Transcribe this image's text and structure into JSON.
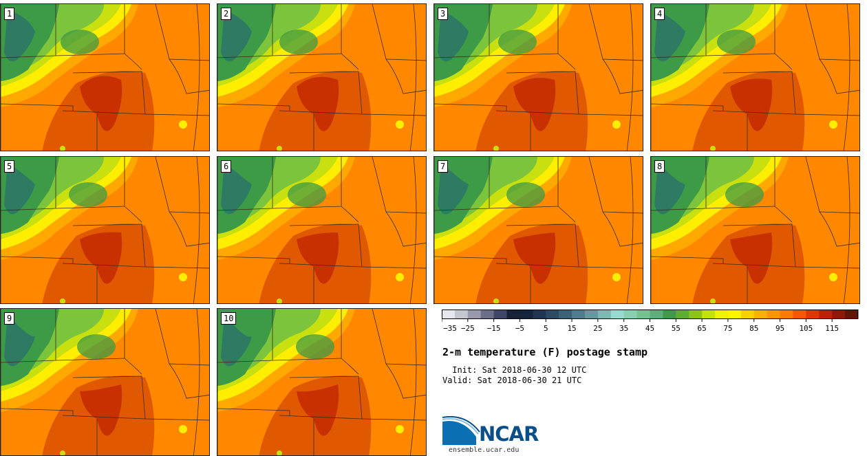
{
  "figure": {
    "title": "2-m temperature (F) postage stamp",
    "init": " Init: Sat 2018-06-30 12 UTC",
    "valid": "Valid: Sat 2018-06-30 21 UTC",
    "logo_text": "NCAR",
    "logo_url": "ensemble.ucar.edu"
  },
  "members": [
    {
      "label": "1"
    },
    {
      "label": "2"
    },
    {
      "label": "3"
    },
    {
      "label": "4"
    },
    {
      "label": "5"
    },
    {
      "label": "6"
    },
    {
      "label": "7"
    },
    {
      "label": "8"
    },
    {
      "label": "9"
    },
    {
      "label": "10"
    }
  ],
  "colorbar": {
    "tick_labels": [
      "−35",
      "−25",
      "−15",
      "−5",
      "5",
      "15",
      "25",
      "35",
      "45",
      "55",
      "65",
      "75",
      "85",
      "95",
      "105",
      "115"
    ],
    "colors": [
      "#e6e6ee",
      "#c4c6d2",
      "#9899ad",
      "#6b6f8a",
      "#3f4766",
      "#1a2238",
      "#15243d",
      "#1f3550",
      "#2c4b63",
      "#3c6278",
      "#4f7c8e",
      "#63999f",
      "#7bb9b4",
      "#94dcd0",
      "#86d2b0",
      "#6ec592",
      "#56b27a",
      "#3d9a46",
      "#5cae2c",
      "#8cc41c",
      "#c3e010",
      "#f0f00c",
      "#fff400",
      "#ffd000",
      "#ffb000",
      "#ff9400",
      "#ff7a00",
      "#f05a00",
      "#d83a00",
      "#b82400",
      "#901800",
      "#6a1200"
    ]
  },
  "colors": {
    "hot_dark": "#c83000",
    "hot": "#e05800",
    "warm": "#ff8800",
    "warm_light": "#ffa800",
    "yellow": "#ffee00",
    "yellow_green": "#c8e010",
    "green": "#7cc43c",
    "forest": "#3d9a46",
    "teal": "#2f7a63",
    "border_line": "#3a2a1a"
  }
}
